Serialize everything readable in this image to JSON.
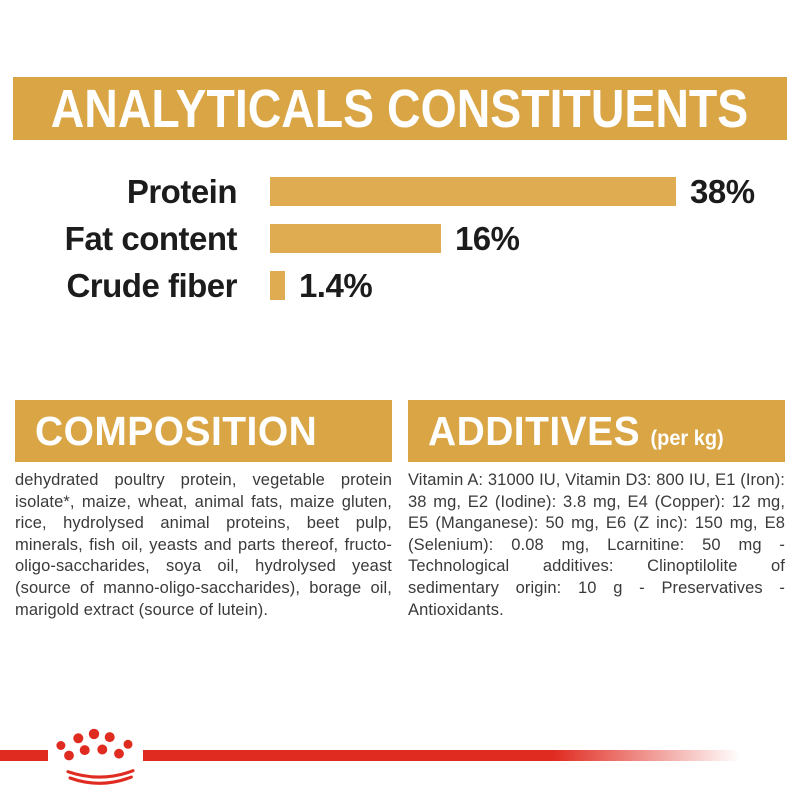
{
  "title_band": {
    "label": "ANALYTICALS CONSTITUENTS"
  },
  "chart_data": {
    "type": "bar",
    "orientation": "horizontal",
    "title": "ANALYTICALS CONSTITUENTS",
    "categories": [
      "Protein",
      "Fat content",
      "Crude fiber"
    ],
    "values": [
      38,
      16,
      1.4
    ],
    "value_labels": [
      "38%",
      "16%",
      "1.4%"
    ],
    "xlim": [
      0,
      38
    ],
    "grid": false,
    "legend": false,
    "bar_color": "#E0AC52"
  },
  "sections": {
    "composition": {
      "title": "COMPOSITION",
      "body": "dehydrated poultry protein, vegetable protein isolate*, maize, wheat, animal fats, maize gluten, rice, hydrolysed animal proteins, beet pulp, minerals, fish oil, yeasts and parts thereof, fructo-oligo-saccharides, soya oil, hydrolysed yeast (source of manno-oligo-saccharides), borage oil, marigold extract (source of lutein)."
    },
    "additives": {
      "title": "ADDITIVES",
      "unit_note": "(per kg)",
      "body": "Vitamin A: 31000 IU, Vitamin D3: 800 IU, E1 (Iron): 38 mg, E2 (Iodine): 3.8 mg, E4 (Copper): 12 mg, E5 (Manganese): 50 mg, E6 (Z inc): 150 mg, E8 (Selenium): 0.08 mg, Lcarnitine: 50 mg - Technological additives: Clinoptilolite of sedimentary origin: 10 g - Preservatives - Antioxidants."
    }
  },
  "footer": {
    "brand": "royal-canin-crown"
  },
  "colors": {
    "gold_band": "#D9A545",
    "gold_bar": "#E0AC52",
    "brand_red": "#E02B20",
    "heading_text": "#FFFFFF",
    "chart_text": "#1C1C1C",
    "body_text": "#3A3A3A"
  }
}
